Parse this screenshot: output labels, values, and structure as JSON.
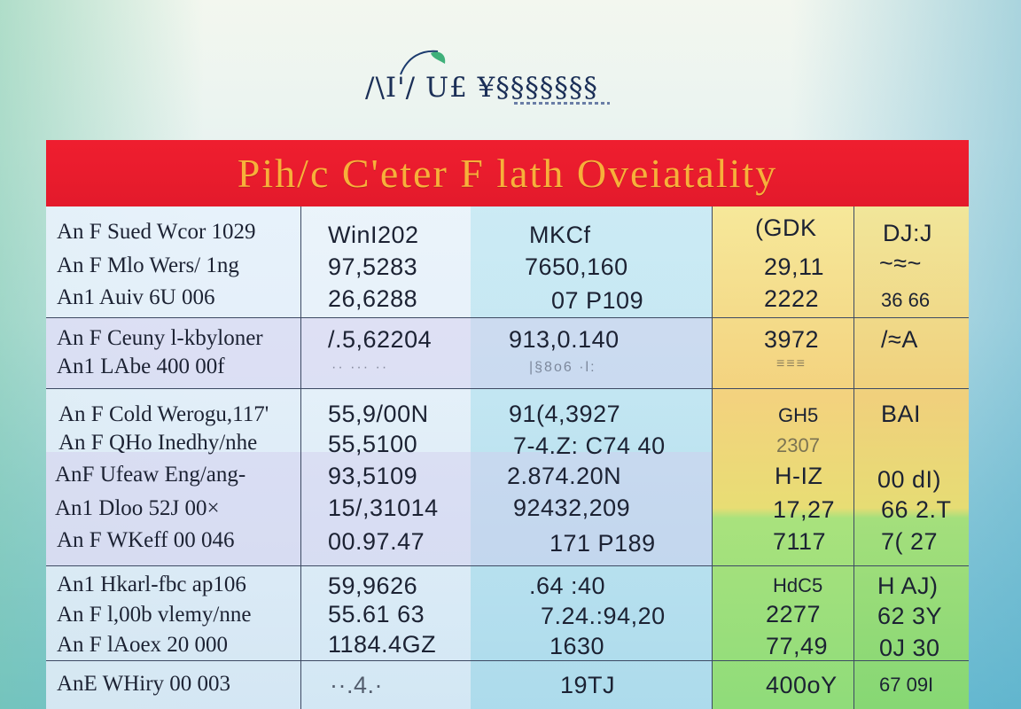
{
  "logo": {
    "text": "/\\I'/ U£ ¥§§§§§§§"
  },
  "title": "Pih/c C'eter F lath Oveiatality",
  "column_colors": {
    "header": "#e31a2b",
    "title_text": "#f7b03a",
    "yellow": "#f3d27e",
    "green": "#8fdc7a"
  },
  "rows": [
    {
      "label": "An F  Sued Wcor 1029",
      "c1": "WinI202",
      "c2": "MKCf",
      "c3": "(GDK",
      "c4": "DJ:J"
    },
    {
      "label": "An F  Mlo Wers/ 1ng",
      "c1": "97,5283",
      "c2": "7650,160",
      "c3": "29,11",
      "c4": "~≈~"
    },
    {
      "label": "An1  Auiv 6U 006",
      "c1": "26,6288",
      "c2": "07 P109",
      "c3": "2222",
      "c4": "36 66"
    },
    {
      "label": "An F  Ceuny l-kbyloner",
      "c1": "/.5,62204",
      "c2": "913,0.140",
      "c3": "3972",
      "c4": "/≈A"
    },
    {
      "label": "An1  LAbe 400 00f",
      "c1": "·· ··· ··",
      "c2": "|§8o6 ·l:",
      "c3": "≡≡≡",
      "c4": ""
    },
    {
      "label": "An F  Cold Werogu,117'",
      "c1": "55,9/00N",
      "c2": "91(4,3927",
      "c3": "GH5",
      "c4": "BAI"
    },
    {
      "label": "An F  QHo Inedhy/nhe",
      "c1": "55,5100",
      "c2": "7-4.Z: C74 40",
      "c3": "2307",
      "c4": ""
    },
    {
      "label": "AnF  Ufeaw Eng/ang-",
      "c1": "93,5109",
      "c2": "2.874.20N",
      "c3": "H-IZ",
      "c4": "00 dI)"
    },
    {
      "label": "An1  Dloo 52J 00×",
      "c1": "15/,31014",
      "c2": "92432,209",
      "c3": "17,27",
      "c4": "66 2.T"
    },
    {
      "label": "An F  WKeff 00 046",
      "c1": "00.97.47",
      "c2": "171 P189",
      "c3": "7117",
      "c4": "7( 27"
    },
    {
      "label": "An1  Hkarl-fbc ap106",
      "c1": "59,9626",
      "c2": ".64 :40",
      "c3": "HdC5",
      "c4": "H AJ)"
    },
    {
      "label": "An F  l,00b vlemy/nne",
      "c1": "55.61 63",
      "c2": "7.24.:94,20",
      "c3": "2277",
      "c4": "62 3Y"
    },
    {
      "label": "An F  lAoex 20 000",
      "c1": "1184.4GZ",
      "c2": "1630",
      "c3": "77,49",
      "c4": "0J 30"
    },
    {
      "label": "AnE  WHiry 00 003",
      "c1": "··.4.·",
      "c2": "19TJ",
      "c3": "400oY",
      "c4": "67 09I"
    }
  ]
}
